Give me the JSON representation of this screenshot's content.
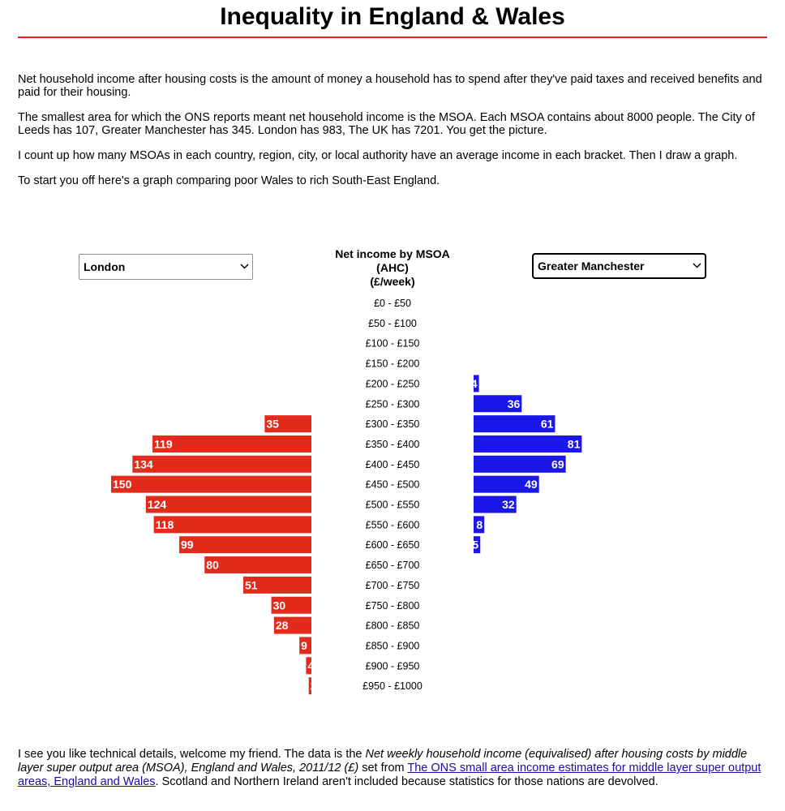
{
  "page": {
    "title": "Inequality in England & Wales",
    "intro": [
      "Net household income after housing costs is the amount of money a household has to spend after they've paid taxes and received benefits and paid for their housing.",
      "The smallest area for which the ONS reports meant net household income is the MSOA. Each MSOA contains about 8000 people. The City of Leeds has 107, Greater Manchester has 345. London has 983, The UK has 7201. You get the picture.",
      "I count up how many MSOAs in each country, region, city, or local authority have an average income in each bracket. Then I draw a graph.",
      "To start you off here's a graph comparing poor Wales to rich South-East England."
    ],
    "footer": {
      "text1": "I see you like technical details, welcome my friend. The data is the ",
      "italic": "Net weekly household income (equivalised) after housing costs by middle layer super output area (MSOA), England and Wales, 2011/12 (£)",
      "text2": " set from ",
      "link": "The ONS small area income estimates for middle layer super output areas, England and Wales",
      "text3": ". Scotland and Northern Ireland aren't included because statistics for those nations are devolved."
    }
  },
  "selectors": {
    "left": {
      "value": "London"
    },
    "right": {
      "value": "Greater Manchester"
    }
  },
  "chart_data": {
    "type": "bar",
    "title_lines": [
      "Net income by MSOA",
      "(AHC)",
      "(£/week)"
    ],
    "categories": [
      "£0 - £50",
      "£50 - £100",
      "£100 - £150",
      "£150 - £200",
      "£200 - £250",
      "£250 - £300",
      "£300 - £350",
      "£350 - £400",
      "£400 - £450",
      "£450 - £500",
      "£500 - £550",
      "£550 - £600",
      "£600 - £650",
      "£650 - £700",
      "£700 - £750",
      "£750 - £800",
      "£800 - £850",
      "£850 - £900",
      "£900 - £950",
      "£950 - £1000"
    ],
    "series": [
      {
        "name": "London",
        "side": "left",
        "color": "#e32b1c",
        "values": [
          0,
          0,
          0,
          0,
          0,
          0,
          35,
          119,
          134,
          150,
          124,
          118,
          99,
          80,
          51,
          30,
          28,
          9,
          4,
          2
        ]
      },
      {
        "name": "Greater Manchester",
        "side": "right",
        "color": "#1b17e8",
        "values": [
          0,
          0,
          0,
          0,
          4,
          36,
          61,
          81,
          69,
          49,
          32,
          8,
          5,
          0,
          0,
          0,
          0,
          0,
          0,
          0
        ]
      }
    ],
    "xlim": [
      0,
      150
    ]
  }
}
